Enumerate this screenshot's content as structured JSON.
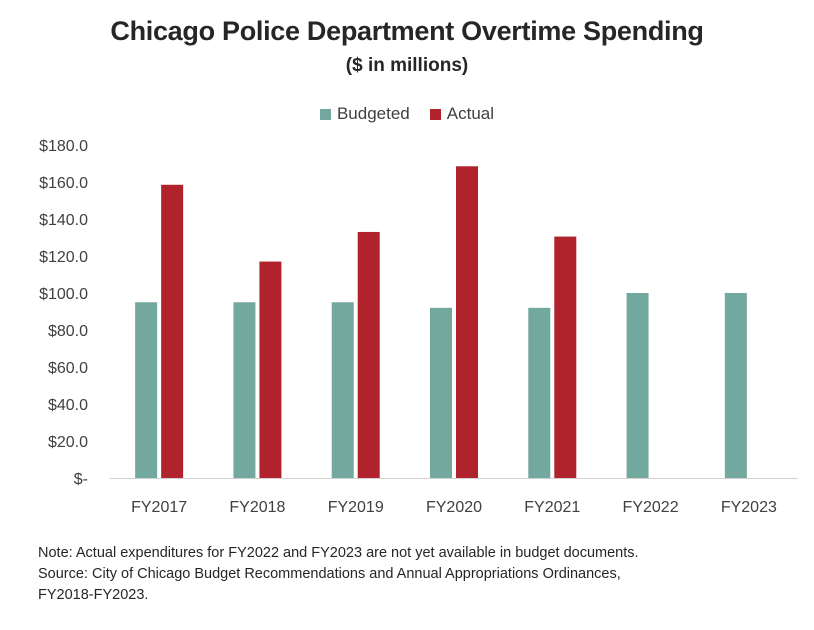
{
  "chart_data": {
    "type": "bar",
    "title": "Chicago Police Department Overtime Spending",
    "subtitle": "($ in millions)",
    "categories": [
      "FY2017",
      "FY2018",
      "FY2019",
      "FY2020",
      "FY2021",
      "FY2022",
      "FY2023"
    ],
    "series": [
      {
        "name": "Budgeted",
        "color": "#72A89D",
        "values": [
          95,
          95,
          95,
          92,
          92,
          100,
          100
        ]
      },
      {
        "name": "Actual",
        "color": "#B0232D",
        "values": [
          158.5,
          117,
          133,
          168.5,
          130.5,
          null,
          null
        ]
      }
    ],
    "y_ticks": [
      "$-",
      "$20.0",
      "$40.0",
      "$60.0",
      "$80.0",
      "$100.0",
      "$120.0",
      "$140.0",
      "$160.0",
      "$180.0"
    ],
    "ylim": [
      0,
      180
    ],
    "grid": false,
    "legend_position": "top"
  },
  "notes": {
    "line1": "Note: Actual expenditures for FY2022 and FY2023 are not yet available in budget documents.",
    "line2": "Source: City of Chicago Budget Recommendations and Annual Appropriations Ordinances,",
    "line3": "FY2018-FY2023."
  }
}
